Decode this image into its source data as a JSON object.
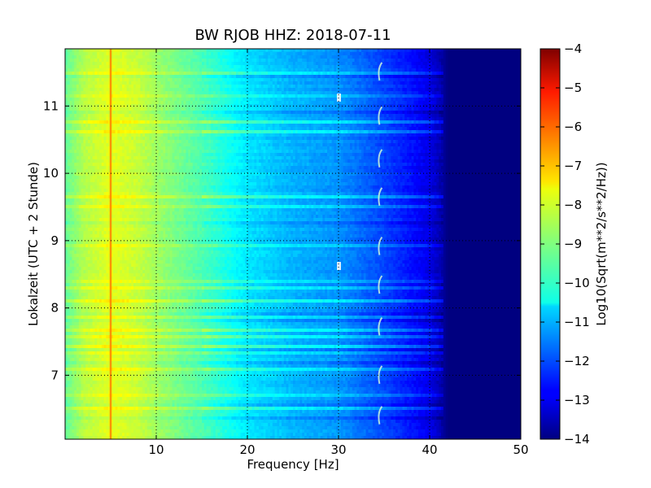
{
  "chart_data": {
    "type": "heatmap",
    "title": "BW RJOB HHZ: 2018-07-11",
    "xlabel": "Frequency [Hz]",
    "ylabel": "Lokalzeit (UTC + 2 Stunde)",
    "xlim": [
      0,
      50
    ],
    "ylim": [
      11.85,
      6.05
    ],
    "y_inverted": true,
    "x_ticks": [
      10,
      20,
      30,
      40,
      50
    ],
    "y_ticks": [
      7,
      8,
      9,
      10,
      11
    ],
    "grid": true,
    "colorbar": {
      "label": "Log10(Sqrt(m**2/s**2/Hz))",
      "range": [
        -14,
        -4
      ],
      "ticks": [
        -4,
        -5,
        -6,
        -7,
        -8,
        -9,
        -10,
        -11,
        -12,
        -13,
        -14
      ],
      "colormap": "jet"
    },
    "profile": {
      "frequency_hz": [
        0,
        2,
        5,
        8,
        10,
        15,
        20,
        25,
        30,
        35,
        38,
        40,
        41,
        42,
        45,
        50
      ],
      "log10_psd": [
        -9.3,
        -8.5,
        -8.0,
        -8.3,
        -8.7,
        -9.5,
        -10.5,
        -11.0,
        -11.3,
        -12.1,
        -12.6,
        -13.0,
        -13.4,
        -14.0,
        -14.0,
        -14.0
      ]
    },
    "features": [
      {
        "kind": "narrow line",
        "frequency_hz": 5,
        "log10_psd": -6.5
      },
      {
        "kind": "drifting tone",
        "frequency_hz": 34.5
      },
      {
        "kind": "tone",
        "frequency_hz": 30
      }
    ]
  }
}
